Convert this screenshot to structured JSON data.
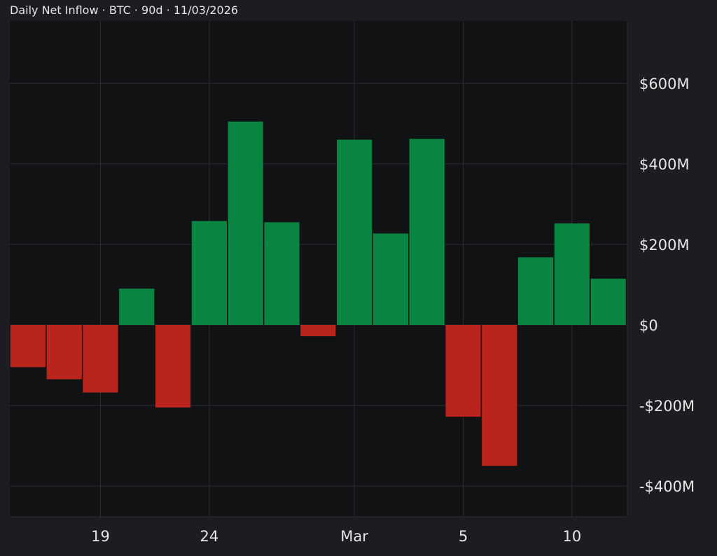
{
  "title": "Daily Net Inflow · BTC · 90d · 11/03/2026",
  "colors": {
    "background": "#1c1d20",
    "plot_background": "#111214",
    "grid": "#2a2c30",
    "positive": "#0a8441",
    "negative": "#b9251d",
    "text": "#e6e6e6"
  },
  "chart_data": {
    "type": "bar",
    "title": "Daily Net Inflow · BTC · 90d · 11/03/2026",
    "xlabel": "",
    "ylabel": "",
    "ylim": [
      -475,
      750
    ],
    "y_ticks": [
      {
        "value": 600,
        "label": "$600M"
      },
      {
        "value": 400,
        "label": "$400M"
      },
      {
        "value": 200,
        "label": "$200M"
      },
      {
        "value": 0,
        "label": "$0"
      },
      {
        "value": -200,
        "label": "-$200M"
      },
      {
        "value": -400,
        "label": "-$400M"
      }
    ],
    "x_ticks": [
      {
        "index": 2.5,
        "label": "19"
      },
      {
        "index": 5.5,
        "label": "24"
      },
      {
        "index": 9.5,
        "label": "Mar"
      },
      {
        "index": 12.5,
        "label": "5"
      },
      {
        "index": 15.5,
        "label": "10"
      }
    ],
    "values": [
      -105,
      -135,
      -168,
      90,
      -205,
      258,
      505,
      255,
      -28,
      460,
      227,
      462,
      -228,
      -350,
      168,
      252,
      115
    ],
    "unit": "M USD",
    "grid": true,
    "legend": "none"
  }
}
